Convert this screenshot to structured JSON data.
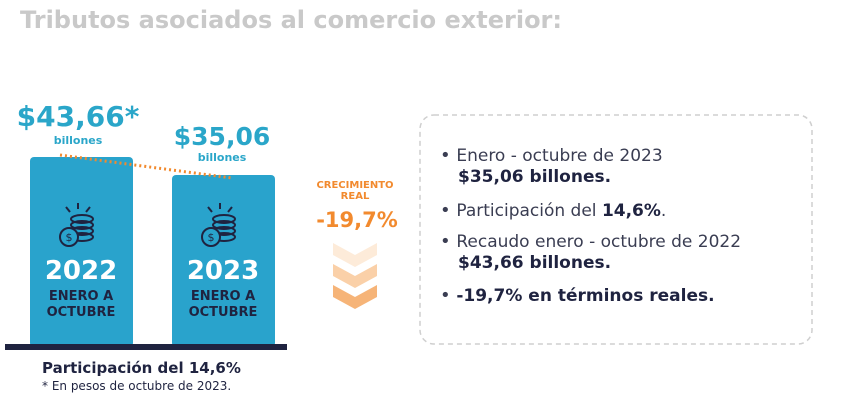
{
  "header": {
    "title": "Tributos asociados al comercio exterior:"
  },
  "bars": [
    {
      "amount": "$43,66*",
      "unit": "billones",
      "year": "2022",
      "period_line1": "ENERO A",
      "period_line2": "OCTUBRE"
    },
    {
      "amount": "$35,06",
      "unit": "billones",
      "year": "2023",
      "period_line1": "ENERO A",
      "period_line2": "OCTUBRE"
    }
  ],
  "growth": {
    "label_line1": "CRECIMIENTO",
    "label_line2": "REAL",
    "value": "-19,7%"
  },
  "bullets": [
    {
      "text": "Enero - octubre de 2023",
      "bold": "$35,06 billones."
    },
    {
      "text": "Participación del ",
      "bold": "14,6%",
      "tail": "."
    },
    {
      "text": "Recaudo enero - octubre de 2022",
      "bold": "$43,66 billones."
    },
    {
      "bold": "-19,7% en términos reales."
    }
  ],
  "footer": {
    "share": "Participación del 14,6%",
    "note": "* En pesos de octubre de 2023."
  }
}
